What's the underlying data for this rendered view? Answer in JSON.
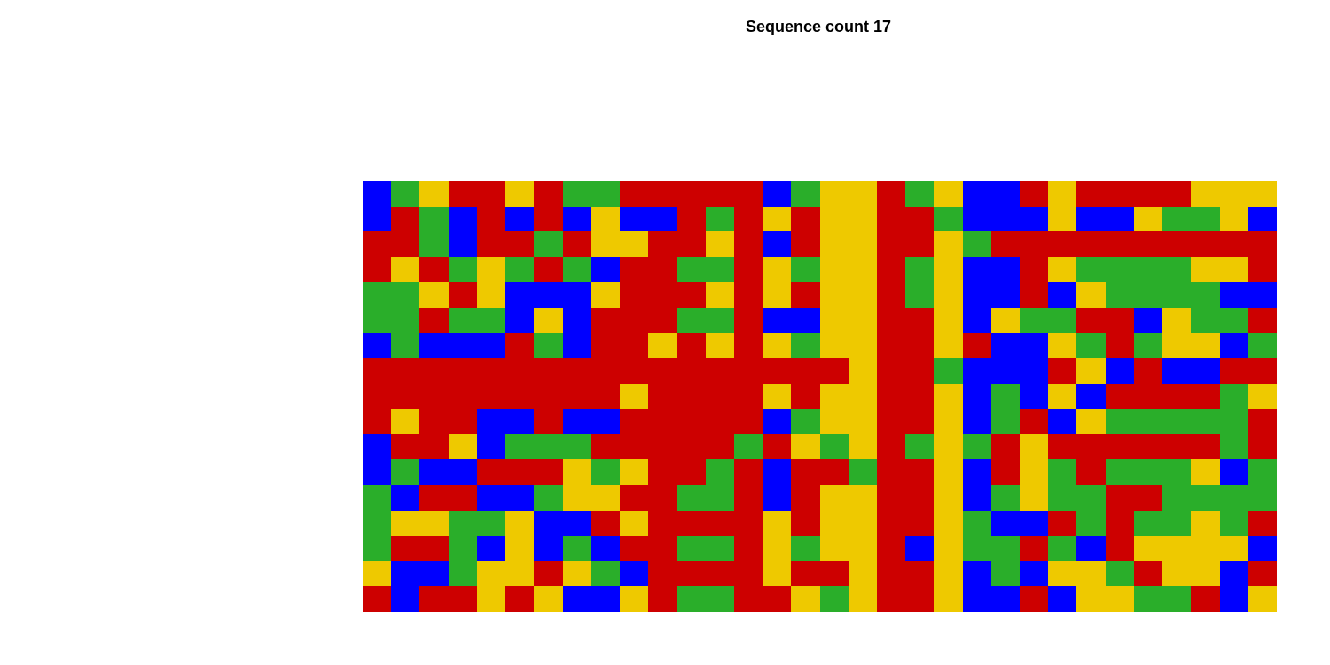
{
  "chart_data": {
    "type": "heatmap",
    "title": "Sequence count 17",
    "xlabel": "",
    "ylabel": "",
    "legend": "none",
    "grid": false,
    "rows": 17,
    "columns": 32,
    "categories": [
      "A",
      "C",
      "G",
      "T"
    ],
    "colors": {
      "A": "#2aae2a",
      "C": "#0000ff",
      "G": "#eec900",
      "T": "#cd0000"
    },
    "sequences": [
      "CAGTTGTAATTTTTCAGGTAGCCTGTTTTGGG",
      "CTACTCTCGCCTATGTGGTTACCCGCCGAAGC",
      "TTACTTATGGTTGTCTGGTTGATTTTTTTTTT",
      "TGTAGATACTTAATGAGGTAGCCTGAAAAGGT",
      "AAGTGCCCGTTTGTGTGGTAGCCTCGAAAACC",
      "AATAACGCTTTAATCCGGTTGCGAATTCGAAT",
      "CACCCTACTTGTGTGAGGTTGTCCGATAGGCA",
      "TTTTTTTTTTTTTTTTTGTTACCCTGCTCCTT",
      "TTTTTTTTTGTTTTGTGGTTGCACGCTTTTAG",
      "TGTTCCTCCTTTTTCAGGTTGCATCGAAAAAT",
      "CTTGCAAATTTTTATGAGTAGATGTTTTTTAT",
      "CACCTTTGAGTTATCTTATTGCTGATAAAGCA",
      "ACTTCCAGGTTAATCTGGTTGCAGAATTAAAA",
      "AGGAAGCCTGTTTTGTGGTTGACCTATAAGAT",
      "ATTACGCACTTAATGAGGTCGAATACTGGGGC",
      "GCCAGGTGACTTTTGTTGTTGCACGGATGGCT",
      "TCTTGTGCCGTAATTGAGTTGCCTCGGAATCG"
    ]
  }
}
